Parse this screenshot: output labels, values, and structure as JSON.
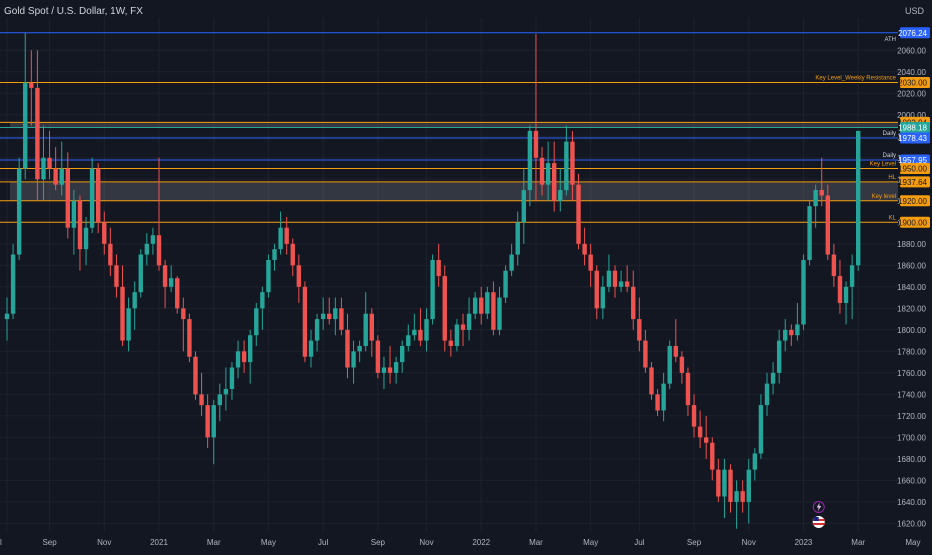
{
  "header": {
    "symbol_title": "Gold Spot / U.S. Dollar, 1W, FX",
    "currency": "USD"
  },
  "colors": {
    "background": "#131722",
    "up": "#26a69a",
    "down": "#ef5350",
    "orange": "#f59d0e",
    "blue": "#2962ff",
    "ath_badge": "#2962ff",
    "last_badge": "#26a69a",
    "grid": "#1e222d"
  },
  "chart_data": {
    "type": "candlestick",
    "title": "Gold Spot / U.S. Dollar, 1W, FX",
    "ylim": [
      1612,
      2090
    ],
    "y_ticks": [
      1620,
      1640,
      1660,
      1680,
      1700,
      1720,
      1740,
      1760,
      1780,
      1800,
      1820,
      1840,
      1860,
      1880,
      1900,
      1920,
      1940,
      1960,
      1980,
      2000,
      2020,
      2040,
      2060
    ],
    "x_ticks": [
      {
        "label": "l",
        "index": 0
      },
      {
        "label": "Sep",
        "index": 7
      },
      {
        "label": "Nov",
        "index": 16
      },
      {
        "label": "2021",
        "index": 25
      },
      {
        "label": "Mar",
        "index": 34
      },
      {
        "label": "May",
        "index": 43
      },
      {
        "label": "Jul",
        "index": 52
      },
      {
        "label": "Sep",
        "index": 61
      },
      {
        "label": "Nov",
        "index": 69
      },
      {
        "label": "2022",
        "index": 78
      },
      {
        "label": "Mar",
        "index": 87
      },
      {
        "label": "May",
        "index": 96
      },
      {
        "label": "Jul",
        "index": 104
      },
      {
        "label": "Sep",
        "index": 113
      },
      {
        "label": "Nov",
        "index": 122
      },
      {
        "label": "2023",
        "index": 131
      },
      {
        "label": "Mar",
        "index": 140
      },
      {
        "label": "May",
        "index": 149
      }
    ],
    "candles": [
      [
        1810,
        1830,
        1790,
        1815
      ],
      [
        1815,
        1880,
        1810,
        1870
      ],
      [
        1870,
        1960,
        1865,
        1950
      ],
      [
        1950,
        2076,
        1940,
        2030
      ],
      [
        2030,
        2060,
        1990,
        2025
      ],
      [
        2025,
        2060,
        1920,
        1940
      ],
      [
        1940,
        1990,
        1920,
        1960
      ],
      [
        1960,
        1985,
        1940,
        1950
      ],
      [
        1950,
        1970,
        1930,
        1935
      ],
      [
        1935,
        1975,
        1925,
        1950
      ],
      [
        1950,
        1965,
        1885,
        1895
      ],
      [
        1895,
        1930,
        1870,
        1920
      ],
      [
        1920,
        1925,
        1855,
        1875
      ],
      [
        1875,
        1905,
        1860,
        1895
      ],
      [
        1895,
        1960,
        1890,
        1950
      ],
      [
        1950,
        1955,
        1890,
        1900
      ],
      [
        1900,
        1910,
        1870,
        1880
      ],
      [
        1880,
        1895,
        1850,
        1860
      ],
      [
        1860,
        1870,
        1830,
        1840
      ],
      [
        1840,
        1860,
        1785,
        1790
      ],
      [
        1790,
        1830,
        1780,
        1820
      ],
      [
        1820,
        1845,
        1800,
        1835
      ],
      [
        1835,
        1875,
        1830,
        1870
      ],
      [
        1870,
        1890,
        1860,
        1880
      ],
      [
        1880,
        1895,
        1870,
        1888
      ],
      [
        1888,
        1960,
        1855,
        1860
      ],
      [
        1860,
        1865,
        1820,
        1840
      ],
      [
        1840,
        1860,
        1835,
        1848
      ],
      [
        1848,
        1850,
        1815,
        1820
      ],
      [
        1820,
        1830,
        1780,
        1810
      ],
      [
        1810,
        1815,
        1770,
        1775
      ],
      [
        1775,
        1780,
        1735,
        1740
      ],
      [
        1740,
        1760,
        1720,
        1730
      ],
      [
        1730,
        1740,
        1690,
        1700
      ],
      [
        1700,
        1735,
        1675,
        1730
      ],
      [
        1730,
        1750,
        1715,
        1740
      ],
      [
        1740,
        1765,
        1725,
        1745
      ],
      [
        1745,
        1770,
        1735,
        1765
      ],
      [
        1765,
        1790,
        1755,
        1780
      ],
      [
        1780,
        1790,
        1760,
        1770
      ],
      [
        1770,
        1800,
        1750,
        1795
      ],
      [
        1795,
        1825,
        1785,
        1820
      ],
      [
        1820,
        1840,
        1800,
        1835
      ],
      [
        1835,
        1870,
        1830,
        1865
      ],
      [
        1865,
        1880,
        1855,
        1875
      ],
      [
        1875,
        1910,
        1870,
        1895
      ],
      [
        1895,
        1905,
        1870,
        1880
      ],
      [
        1880,
        1885,
        1850,
        1860
      ],
      [
        1860,
        1870,
        1825,
        1840
      ],
      [
        1840,
        1845,
        1770,
        1775
      ],
      [
        1775,
        1800,
        1765,
        1790
      ],
      [
        1790,
        1815,
        1780,
        1810
      ],
      [
        1810,
        1830,
        1800,
        1815
      ],
      [
        1815,
        1830,
        1805,
        1810
      ],
      [
        1810,
        1830,
        1795,
        1820
      ],
      [
        1820,
        1830,
        1795,
        1800
      ],
      [
        1800,
        1815,
        1755,
        1765
      ],
      [
        1765,
        1790,
        1750,
        1780
      ],
      [
        1780,
        1790,
        1770,
        1785
      ],
      [
        1785,
        1835,
        1780,
        1815
      ],
      [
        1815,
        1820,
        1775,
        1790
      ],
      [
        1790,
        1795,
        1755,
        1760
      ],
      [
        1760,
        1775,
        1745,
        1765
      ],
      [
        1765,
        1785,
        1750,
        1760
      ],
      [
        1760,
        1775,
        1750,
        1770
      ],
      [
        1770,
        1790,
        1760,
        1785
      ],
      [
        1785,
        1805,
        1780,
        1795
      ],
      [
        1795,
        1815,
        1790,
        1800
      ],
      [
        1800,
        1820,
        1785,
        1790
      ],
      [
        1790,
        1820,
        1780,
        1810
      ],
      [
        1810,
        1870,
        1805,
        1865
      ],
      [
        1865,
        1880,
        1840,
        1850
      ],
      [
        1850,
        1860,
        1780,
        1790
      ],
      [
        1790,
        1800,
        1775,
        1785
      ],
      [
        1785,
        1810,
        1780,
        1805
      ],
      [
        1805,
        1815,
        1785,
        1800
      ],
      [
        1800,
        1830,
        1790,
        1815
      ],
      [
        1815,
        1835,
        1810,
        1830
      ],
      [
        1830,
        1840,
        1805,
        1815
      ],
      [
        1815,
        1840,
        1810,
        1835
      ],
      [
        1835,
        1845,
        1795,
        1800
      ],
      [
        1800,
        1840,
        1795,
        1830
      ],
      [
        1830,
        1860,
        1825,
        1855
      ],
      [
        1855,
        1880,
        1850,
        1870
      ],
      [
        1870,
        1910,
        1860,
        1900
      ],
      [
        1900,
        1950,
        1880,
        1930
      ],
      [
        1930,
        1990,
        1915,
        1985
      ],
      [
        1985,
        2075,
        1920,
        1960
      ],
      [
        1960,
        1970,
        1925,
        1935
      ],
      [
        1935,
        1975,
        1920,
        1955
      ],
      [
        1955,
        1975,
        1910,
        1920
      ],
      [
        1920,
        1950,
        1910,
        1930
      ],
      [
        1930,
        1990,
        1925,
        1975
      ],
      [
        1975,
        1985,
        1920,
        1935
      ],
      [
        1935,
        1945,
        1875,
        1880
      ],
      [
        1880,
        1895,
        1860,
        1870
      ],
      [
        1870,
        1880,
        1840,
        1855
      ],
      [
        1855,
        1860,
        1810,
        1820
      ],
      [
        1820,
        1850,
        1810,
        1840
      ],
      [
        1840,
        1870,
        1835,
        1855
      ],
      [
        1855,
        1860,
        1830,
        1840
      ],
      [
        1840,
        1855,
        1835,
        1845
      ],
      [
        1845,
        1860,
        1835,
        1840
      ],
      [
        1840,
        1855,
        1800,
        1810
      ],
      [
        1810,
        1830,
        1780,
        1790
      ],
      [
        1790,
        1800,
        1760,
        1765
      ],
      [
        1765,
        1770,
        1735,
        1740
      ],
      [
        1740,
        1745,
        1720,
        1725
      ],
      [
        1725,
        1760,
        1715,
        1750
      ],
      [
        1750,
        1790,
        1745,
        1785
      ],
      [
        1785,
        1810,
        1770,
        1775
      ],
      [
        1775,
        1780,
        1750,
        1760
      ],
      [
        1760,
        1765,
        1720,
        1730
      ],
      [
        1730,
        1740,
        1700,
        1710
      ],
      [
        1710,
        1725,
        1690,
        1700
      ],
      [
        1700,
        1720,
        1680,
        1695
      ],
      [
        1695,
        1700,
        1660,
        1670
      ],
      [
        1670,
        1680,
        1640,
        1645
      ],
      [
        1645,
        1680,
        1625,
        1670
      ],
      [
        1670,
        1675,
        1630,
        1640
      ],
      [
        1640,
        1660,
        1615,
        1650
      ],
      [
        1650,
        1660,
        1630,
        1640
      ],
      [
        1640,
        1680,
        1620,
        1670
      ],
      [
        1670,
        1690,
        1660,
        1685
      ],
      [
        1685,
        1740,
        1680,
        1730
      ],
      [
        1730,
        1760,
        1720,
        1750
      ],
      [
        1750,
        1770,
        1740,
        1760
      ],
      [
        1760,
        1800,
        1750,
        1790
      ],
      [
        1790,
        1810,
        1780,
        1800
      ],
      [
        1800,
        1805,
        1785,
        1795
      ],
      [
        1795,
        1825,
        1790,
        1805
      ],
      [
        1805,
        1870,
        1800,
        1865
      ],
      [
        1865,
        1920,
        1860,
        1915
      ],
      [
        1915,
        1935,
        1895,
        1930
      ],
      [
        1930,
        1960,
        1915,
        1925
      ],
      [
        1925,
        1935,
        1865,
        1870
      ],
      [
        1870,
        1880,
        1840,
        1850
      ],
      [
        1850,
        1865,
        1815,
        1825
      ],
      [
        1825,
        1845,
        1805,
        1840
      ],
      [
        1840,
        1870,
        1810,
        1860
      ],
      [
        1860,
        1985,
        1855,
        1985
      ]
    ],
    "levels": [
      {
        "price": 2076.24,
        "color": "blue",
        "label": "ATH",
        "badge": "2076.24"
      },
      {
        "price": 2030.0,
        "color": "orange",
        "label": "Key Level_Weekly Resistance",
        "badge": "2030.00"
      },
      {
        "price": 1992.94,
        "color": "orange",
        "label": "",
        "badge": "1992.94"
      },
      {
        "price": 1988.18,
        "color": "green",
        "label": "",
        "badge": "1988.18"
      },
      {
        "price": 1978.43,
        "color": "blue",
        "label": "Daily",
        "badge": "1978.43"
      },
      {
        "price": 1957.95,
        "color": "blue",
        "label": "Daily",
        "badge": "1957.95"
      },
      {
        "price": 1950.0,
        "color": "orange",
        "label": "Key Level",
        "badge": "1950.00"
      },
      {
        "price": 1937.64,
        "color": "orange",
        "label": "HL",
        "badge": "1937.64"
      },
      {
        "price": 1920.0,
        "color": "orange",
        "label": "Key level",
        "badge": "1920.00"
      },
      {
        "price": 1900.0,
        "color": "orange",
        "label": "KL",
        "badge": "1900.00"
      }
    ],
    "zones": [
      {
        "from": 1920,
        "to": 1937.64
      },
      {
        "from": 1988.18,
        "to": 1992.94
      }
    ]
  }
}
